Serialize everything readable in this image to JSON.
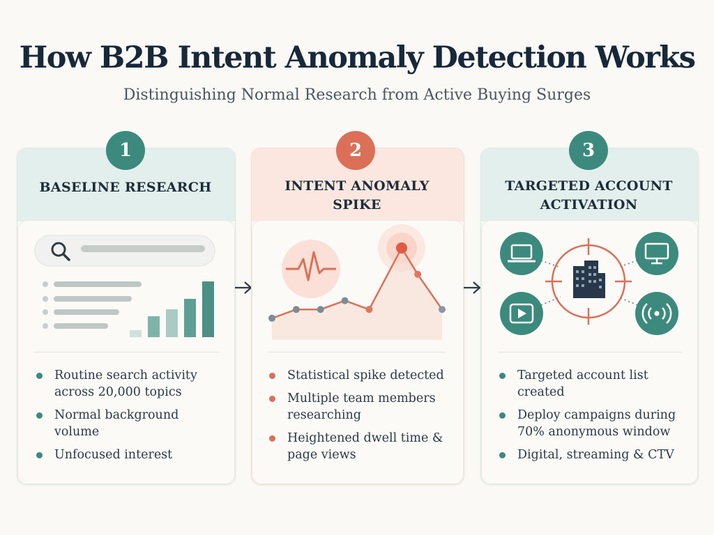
{
  "header": {
    "title": "How B2B Intent Anomaly Detection Works",
    "subtitle": "Distinguishing Normal Research from Active Buying Surges"
  },
  "colors": {
    "teal": "#3c8a7d",
    "coral": "#dc6f58",
    "navy": "#17283a"
  },
  "steps": [
    {
      "number": "1",
      "title_lines": [
        "BASELINE RESEARCH"
      ],
      "icons": [
        "search-icon",
        "list-lines-icon",
        "bar-chart-icon"
      ],
      "bullets": [
        "Routine search activity across 20,000 topics",
        "Normal background volume",
        "Unfocused interest"
      ],
      "bars": [
        1,
        3,
        4,
        5.5,
        8
      ]
    },
    {
      "number": "2",
      "title_lines": [
        "INTENT ANOMALY",
        "SPIKE"
      ],
      "icons": [
        "heartbeat-icon",
        "spike-line-chart-icon"
      ],
      "bullets": [
        "Statistical spike detected",
        "Multiple team members researching",
        "Heightened dwell time & page views"
      ],
      "line_values": [
        2,
        3,
        3,
        4,
        3,
        10,
        7,
        3
      ]
    },
    {
      "number": "3",
      "title_lines": [
        "TARGETED ACCOUNT",
        "ACTIVATION"
      ],
      "icons": [
        "laptop-icon",
        "monitor-icon",
        "video-play-icon",
        "broadcast-icon",
        "building-icon",
        "crosshair-icon"
      ],
      "bullets": [
        "Targeted account list created",
        "Deploy campaigns during 70% anonymous window",
        "Digital, streaming & CTV"
      ]
    }
  ]
}
